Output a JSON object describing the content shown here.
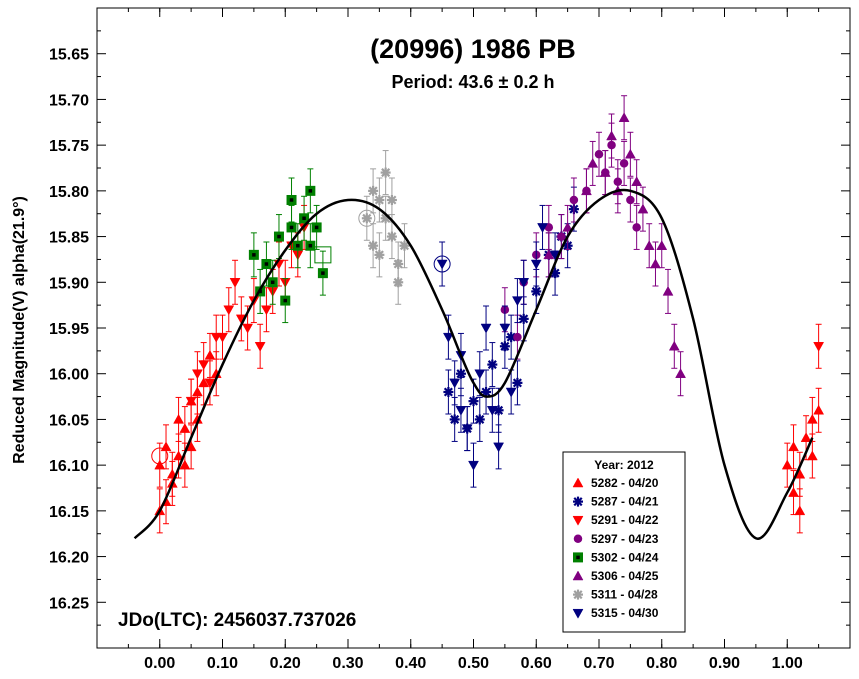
{
  "chart_data": {
    "type": "scatter",
    "title": "(20996) 1986 PB",
    "subtitle": "Period: 43.6 ± 0.2 h",
    "ylabel": "Reduced Magnitude(V) alpha(21.9°)",
    "xlabel": "",
    "xlim": [
      -0.1,
      1.1
    ],
    "ylim": [
      16.3,
      15.6
    ],
    "y_inverted": true,
    "x_ticks": [
      0.0,
      0.1,
      0.2,
      0.3,
      0.4,
      0.5,
      0.6,
      0.7,
      0.8,
      0.9,
      1.0
    ],
    "x_tick_labels": [
      "0.00",
      "0.10",
      "0.20",
      "0.30",
      "0.40",
      "0.50",
      "0.60",
      "0.70",
      "0.80",
      "0.90",
      "1.00"
    ],
    "y_ticks": [
      15.65,
      15.7,
      15.75,
      15.8,
      15.85,
      15.9,
      15.95,
      16.0,
      16.05,
      16.1,
      16.15,
      16.2,
      16.25
    ],
    "y_tick_labels": [
      "15.65",
      "15.70",
      "15.75",
      "15.80",
      "15.85",
      "15.90",
      "15.95",
      "16.00",
      "16.05",
      "16.10",
      "16.15",
      "16.20",
      "16.25"
    ],
    "annotation": "JDo(LTC): 2456037.737026",
    "legend": {
      "title": "Year: 2012",
      "placement": "bottom-right"
    },
    "fit_curve": {
      "x": [
        -0.04,
        0.0,
        0.05,
        0.1,
        0.15,
        0.2,
        0.25,
        0.3,
        0.35,
        0.4,
        0.45,
        0.48,
        0.5,
        0.52,
        0.55,
        0.6,
        0.65,
        0.7,
        0.75,
        0.8,
        0.85,
        0.9,
        0.95,
        1.0,
        1.04
      ],
      "y": [
        16.18,
        16.15,
        16.07,
        15.99,
        15.92,
        15.865,
        15.825,
        15.81,
        15.82,
        15.86,
        15.93,
        15.98,
        16.01,
        16.025,
        16.01,
        15.93,
        15.85,
        15.81,
        15.8,
        15.83,
        15.94,
        16.1,
        16.18,
        16.13,
        16.07
      ]
    },
    "series": [
      {
        "name": "5282 - 04/20",
        "marker": "triangle-up",
        "color": "#ff0000",
        "open": [
          [
            0.0,
            16.09
          ]
        ],
        "points": [
          [
            0.0,
            16.15
          ],
          [
            0.0,
            16.1
          ],
          [
            0.01,
            16.08
          ],
          [
            0.01,
            16.14
          ],
          [
            0.02,
            16.11
          ],
          [
            0.02,
            16.12
          ],
          [
            0.03,
            16.09
          ],
          [
            0.03,
            16.05
          ],
          [
            0.04,
            16.06
          ],
          [
            0.04,
            16.1
          ],
          [
            0.05,
            16.03
          ],
          [
            0.05,
            16.08
          ],
          [
            0.06,
            16.02
          ],
          [
            0.06,
            16.05
          ],
          [
            0.07,
            16.01
          ],
          [
            0.08,
            15.98
          ],
          [
            0.09,
            16.0
          ],
          [
            1.0,
            16.1
          ],
          [
            1.01,
            16.13
          ],
          [
            1.01,
            16.08
          ],
          [
            1.02,
            16.11
          ],
          [
            1.02,
            16.15
          ],
          [
            1.03,
            16.07
          ],
          [
            1.04,
            16.05
          ],
          [
            1.04,
            16.09
          ],
          [
            1.05,
            16.04
          ]
        ]
      },
      {
        "name": "5287 - 04/21",
        "marker": "star",
        "color": "#000080",
        "open": [],
        "points": [
          [
            0.46,
            16.02
          ],
          [
            0.47,
            16.05
          ],
          [
            0.48,
            16.0
          ],
          [
            0.49,
            16.06
          ],
          [
            0.5,
            16.03
          ],
          [
            0.51,
            16.05
          ],
          [
            0.52,
            16.02
          ],
          [
            0.53,
            15.99
          ],
          [
            0.54,
            16.04
          ],
          [
            0.55,
            15.97
          ],
          [
            0.56,
            15.96
          ],
          [
            0.57,
            16.01
          ],
          [
            0.58,
            15.94
          ],
          [
            0.6,
            15.91
          ],
          [
            0.62,
            15.87
          ],
          [
            0.63,
            15.89
          ],
          [
            0.64,
            15.85
          ],
          [
            0.65,
            15.86
          ],
          [
            0.66,
            15.82
          ]
        ]
      },
      {
        "name": "5291 - 04/22",
        "marker": "triangle-down",
        "color": "#ff0000",
        "open": [],
        "points": [
          [
            0.05,
            16.03
          ],
          [
            0.06,
            16.0
          ],
          [
            0.07,
            15.99
          ],
          [
            0.08,
            16.01
          ],
          [
            0.09,
            15.96
          ],
          [
            0.1,
            15.96
          ],
          [
            0.11,
            15.93
          ],
          [
            0.12,
            15.9
          ],
          [
            0.13,
            15.94
          ],
          [
            0.14,
            15.95
          ],
          [
            0.15,
            15.92
          ],
          [
            0.16,
            15.97
          ],
          [
            0.17,
            15.93
          ],
          [
            0.18,
            15.91
          ],
          [
            0.19,
            15.88
          ],
          [
            0.2,
            15.9
          ],
          [
            0.21,
            15.86
          ],
          [
            0.22,
            15.87
          ],
          [
            0.23,
            15.84
          ],
          [
            1.05,
            15.97
          ]
        ]
      },
      {
        "name": "5297 - 04/23",
        "marker": "circle",
        "color": "#800080",
        "open": [],
        "points": [
          [
            0.55,
            15.93
          ],
          [
            0.57,
            15.96
          ],
          [
            0.58,
            15.9
          ],
          [
            0.6,
            15.87
          ],
          [
            0.62,
            15.84
          ],
          [
            0.64,
            15.85
          ],
          [
            0.66,
            15.81
          ],
          [
            0.68,
            15.8
          ],
          [
            0.7,
            15.76
          ],
          [
            0.71,
            15.78
          ],
          [
            0.72,
            15.75
          ],
          [
            0.73,
            15.79
          ],
          [
            0.74,
            15.77
          ],
          [
            0.75,
            15.81
          ],
          [
            0.76,
            15.84
          ]
        ]
      },
      {
        "name": "5302 - 04/24",
        "marker": "square",
        "color": "#008000",
        "open": [
          [
            0.26,
            15.87
          ]
        ],
        "points": [
          [
            0.15,
            15.87
          ],
          [
            0.16,
            15.91
          ],
          [
            0.17,
            15.88
          ],
          [
            0.18,
            15.9
          ],
          [
            0.19,
            15.85
          ],
          [
            0.2,
            15.92
          ],
          [
            0.21,
            15.84
          ],
          [
            0.21,
            15.81
          ],
          [
            0.22,
            15.86
          ],
          [
            0.23,
            15.83
          ],
          [
            0.24,
            15.8
          ],
          [
            0.24,
            15.86
          ],
          [
            0.25,
            15.84
          ],
          [
            0.26,
            15.89
          ]
        ]
      },
      {
        "name": "5306 - 04/25",
        "marker": "triangle-up",
        "color": "#800080",
        "open": [],
        "points": [
          [
            0.62,
            15.87
          ],
          [
            0.65,
            15.84
          ],
          [
            0.68,
            15.8
          ],
          [
            0.69,
            15.77
          ],
          [
            0.71,
            15.78
          ],
          [
            0.72,
            15.74
          ],
          [
            0.73,
            15.8
          ],
          [
            0.74,
            15.72
          ],
          [
            0.75,
            15.76
          ],
          [
            0.76,
            15.79
          ],
          [
            0.77,
            15.82
          ],
          [
            0.78,
            15.86
          ],
          [
            0.79,
            15.88
          ],
          [
            0.8,
            15.86
          ],
          [
            0.81,
            15.91
          ],
          [
            0.82,
            15.97
          ],
          [
            0.83,
            16.0
          ]
        ]
      },
      {
        "name": "5311 - 04/28",
        "marker": "star",
        "color": "#a0a0a0",
        "open": [
          [
            0.33,
            15.83
          ]
        ],
        "points": [
          [
            0.33,
            15.83
          ],
          [
            0.34,
            15.86
          ],
          [
            0.34,
            15.8
          ],
          [
            0.35,
            15.87
          ],
          [
            0.35,
            15.81
          ],
          [
            0.36,
            15.83
          ],
          [
            0.36,
            15.78
          ],
          [
            0.37,
            15.85
          ],
          [
            0.37,
            15.81
          ],
          [
            0.38,
            15.88
          ],
          [
            0.38,
            15.9
          ],
          [
            0.39,
            15.86
          ]
        ]
      },
      {
        "name": "5315 - 04/30",
        "marker": "triangle-down",
        "color": "#000080",
        "open": [
          [
            0.45,
            15.88
          ]
        ],
        "points": [
          [
            0.45,
            15.88
          ],
          [
            0.46,
            15.96
          ],
          [
            0.47,
            16.01
          ],
          [
            0.48,
            15.98
          ],
          [
            0.48,
            16.04
          ],
          [
            0.49,
            16.06
          ],
          [
            0.5,
            16.1
          ],
          [
            0.51,
            16.0
          ],
          [
            0.52,
            15.95
          ],
          [
            0.53,
            16.04
          ],
          [
            0.54,
            16.08
          ],
          [
            0.55,
            15.95
          ],
          [
            0.56,
            16.02
          ],
          [
            0.57,
            15.92
          ],
          [
            0.58,
            15.9
          ],
          [
            0.6,
            15.88
          ],
          [
            0.61,
            15.84
          ],
          [
            0.63,
            15.87
          ]
        ]
      }
    ]
  }
}
